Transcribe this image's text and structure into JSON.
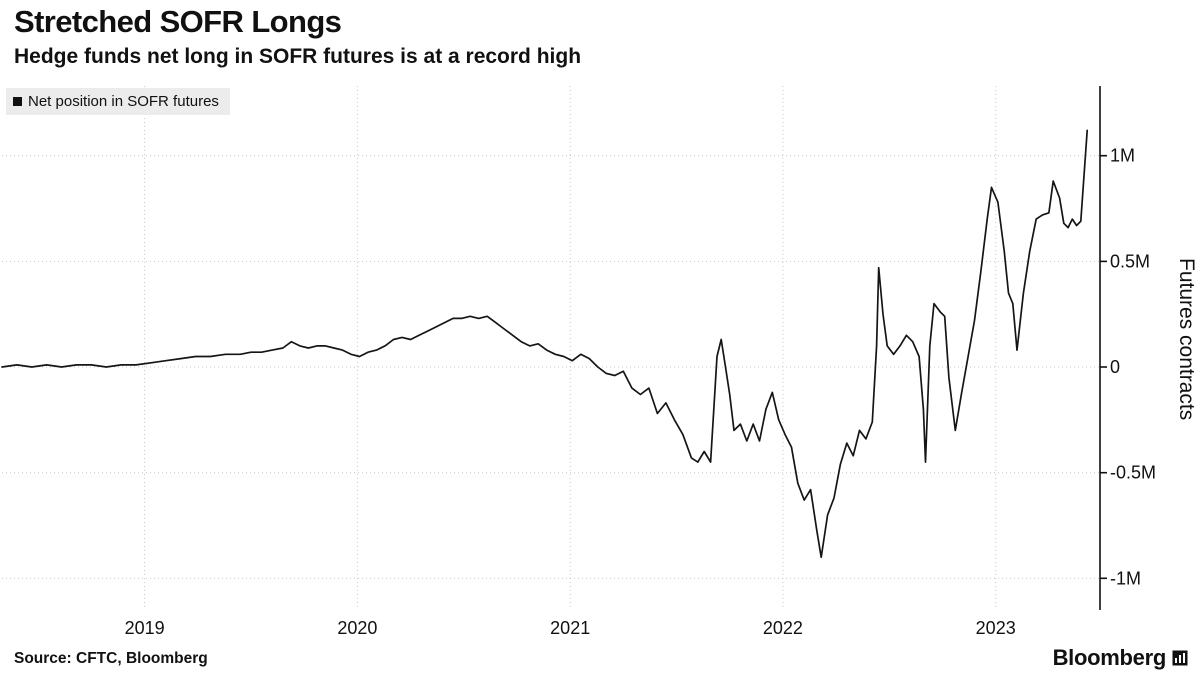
{
  "header": {
    "title": "Stretched SOFR Longs",
    "subtitle": "Hedge funds net long in SOFR futures is at a record high"
  },
  "legend": {
    "label": "Net position in SOFR futures"
  },
  "footer": {
    "source": "Source: CFTC, Bloomberg",
    "brand": "Bloomberg"
  },
  "chart_data": {
    "type": "line",
    "title": "Stretched SOFR Longs",
    "subtitle": "Hedge funds net long in SOFR futures is at a record high",
    "xlabel": "",
    "ylabel": "Futures contracts",
    "unit": "millions of futures contracts",
    "xlim": [
      2018.33,
      2023.49
    ],
    "ylim": [
      -1.15,
      1.33
    ],
    "grid": "dotted",
    "legend_position": "top-left",
    "line_color": "#151515",
    "grid_color": "#c9c9c9",
    "xticks": {
      "values": [
        2019,
        2020,
        2021,
        2022,
        2023
      ],
      "labels": [
        "2019",
        "2020",
        "2021",
        "2022",
        "2023"
      ]
    },
    "yticks": {
      "values": [
        1,
        0.5,
        0,
        -0.5,
        -1
      ],
      "labels": [
        "1M",
        "0.5M",
        "0",
        "-0.5M",
        "-1M"
      ]
    },
    "series": [
      {
        "name": "Net position in SOFR futures",
        "points": [
          [
            2018.33,
            0.0
          ],
          [
            2018.4,
            0.01
          ],
          [
            2018.47,
            0.0
          ],
          [
            2018.54,
            0.01
          ],
          [
            2018.61,
            0.0
          ],
          [
            2018.68,
            0.01
          ],
          [
            2018.75,
            0.01
          ],
          [
            2018.82,
            0.0
          ],
          [
            2018.89,
            0.01
          ],
          [
            2018.96,
            0.01
          ],
          [
            2019.03,
            0.02
          ],
          [
            2019.1,
            0.03
          ],
          [
            2019.17,
            0.04
          ],
          [
            2019.24,
            0.05
          ],
          [
            2019.31,
            0.05
          ],
          [
            2019.38,
            0.06
          ],
          [
            2019.45,
            0.06
          ],
          [
            2019.5,
            0.07
          ],
          [
            2019.55,
            0.07
          ],
          [
            2019.6,
            0.08
          ],
          [
            2019.65,
            0.09
          ],
          [
            2019.69,
            0.12
          ],
          [
            2019.73,
            0.1
          ],
          [
            2019.77,
            0.09
          ],
          [
            2019.81,
            0.1
          ],
          [
            2019.85,
            0.1
          ],
          [
            2019.89,
            0.09
          ],
          [
            2019.93,
            0.08
          ],
          [
            2019.97,
            0.06
          ],
          [
            2020.01,
            0.05
          ],
          [
            2020.05,
            0.07
          ],
          [
            2020.09,
            0.08
          ],
          [
            2020.13,
            0.1
          ],
          [
            2020.17,
            0.13
          ],
          [
            2020.21,
            0.14
          ],
          [
            2020.25,
            0.13
          ],
          [
            2020.29,
            0.15
          ],
          [
            2020.33,
            0.17
          ],
          [
            2020.37,
            0.19
          ],
          [
            2020.41,
            0.21
          ],
          [
            2020.45,
            0.23
          ],
          [
            2020.49,
            0.23
          ],
          [
            2020.53,
            0.24
          ],
          [
            2020.57,
            0.23
          ],
          [
            2020.61,
            0.24
          ],
          [
            2020.65,
            0.21
          ],
          [
            2020.69,
            0.18
          ],
          [
            2020.73,
            0.15
          ],
          [
            2020.77,
            0.12
          ],
          [
            2020.81,
            0.1
          ],
          [
            2020.85,
            0.11
          ],
          [
            2020.89,
            0.08
          ],
          [
            2020.93,
            0.06
          ],
          [
            2020.97,
            0.05
          ],
          [
            2021.01,
            0.03
          ],
          [
            2021.05,
            0.06
          ],
          [
            2021.09,
            0.04
          ],
          [
            2021.13,
            0.0
          ],
          [
            2021.17,
            -0.03
          ],
          [
            2021.21,
            -0.04
          ],
          [
            2021.25,
            -0.02
          ],
          [
            2021.29,
            -0.1
          ],
          [
            2021.33,
            -0.13
          ],
          [
            2021.37,
            -0.1
          ],
          [
            2021.41,
            -0.22
          ],
          [
            2021.45,
            -0.17
          ],
          [
            2021.49,
            -0.25
          ],
          [
            2021.53,
            -0.32
          ],
          [
            2021.57,
            -0.43
          ],
          [
            2021.6,
            -0.45
          ],
          [
            2021.63,
            -0.4
          ],
          [
            2021.66,
            -0.45
          ],
          [
            2021.69,
            0.05
          ],
          [
            2021.71,
            0.13
          ],
          [
            2021.73,
            0.0
          ],
          [
            2021.75,
            -0.13
          ],
          [
            2021.77,
            -0.3
          ],
          [
            2021.8,
            -0.27
          ],
          [
            2021.83,
            -0.35
          ],
          [
            2021.86,
            -0.27
          ],
          [
            2021.89,
            -0.35
          ],
          [
            2021.92,
            -0.2
          ],
          [
            2021.95,
            -0.12
          ],
          [
            2021.98,
            -0.25
          ],
          [
            2022.01,
            -0.32
          ],
          [
            2022.04,
            -0.38
          ],
          [
            2022.07,
            -0.55
          ],
          [
            2022.1,
            -0.63
          ],
          [
            2022.13,
            -0.58
          ],
          [
            2022.16,
            -0.78
          ],
          [
            2022.18,
            -0.9
          ],
          [
            2022.21,
            -0.7
          ],
          [
            2022.24,
            -0.62
          ],
          [
            2022.27,
            -0.46
          ],
          [
            2022.3,
            -0.36
          ],
          [
            2022.33,
            -0.42
          ],
          [
            2022.36,
            -0.3
          ],
          [
            2022.39,
            -0.34
          ],
          [
            2022.42,
            -0.26
          ],
          [
            2022.44,
            0.1
          ],
          [
            2022.45,
            0.47
          ],
          [
            2022.47,
            0.25
          ],
          [
            2022.49,
            0.1
          ],
          [
            2022.52,
            0.06
          ],
          [
            2022.55,
            0.1
          ],
          [
            2022.58,
            0.15
          ],
          [
            2022.61,
            0.12
          ],
          [
            2022.64,
            0.05
          ],
          [
            2022.66,
            -0.2
          ],
          [
            2022.67,
            -0.45
          ],
          [
            2022.69,
            0.1
          ],
          [
            2022.71,
            0.3
          ],
          [
            2022.74,
            0.26
          ],
          [
            2022.76,
            0.24
          ],
          [
            2022.78,
            -0.05
          ],
          [
            2022.81,
            -0.3
          ],
          [
            2022.84,
            -0.12
          ],
          [
            2022.87,
            0.05
          ],
          [
            2022.9,
            0.22
          ],
          [
            2022.93,
            0.45
          ],
          [
            2022.96,
            0.7
          ],
          [
            2022.98,
            0.85
          ],
          [
            2023.01,
            0.78
          ],
          [
            2023.04,
            0.55
          ],
          [
            2023.06,
            0.35
          ],
          [
            2023.08,
            0.3
          ],
          [
            2023.1,
            0.08
          ],
          [
            2023.13,
            0.35
          ],
          [
            2023.16,
            0.55
          ],
          [
            2023.19,
            0.7
          ],
          [
            2023.22,
            0.72
          ],
          [
            2023.25,
            0.73
          ],
          [
            2023.27,
            0.88
          ],
          [
            2023.3,
            0.8
          ],
          [
            2023.32,
            0.68
          ],
          [
            2023.34,
            0.66
          ],
          [
            2023.36,
            0.7
          ],
          [
            2023.38,
            0.67
          ],
          [
            2023.4,
            0.69
          ],
          [
            2023.43,
            1.12
          ]
        ]
      }
    ]
  }
}
